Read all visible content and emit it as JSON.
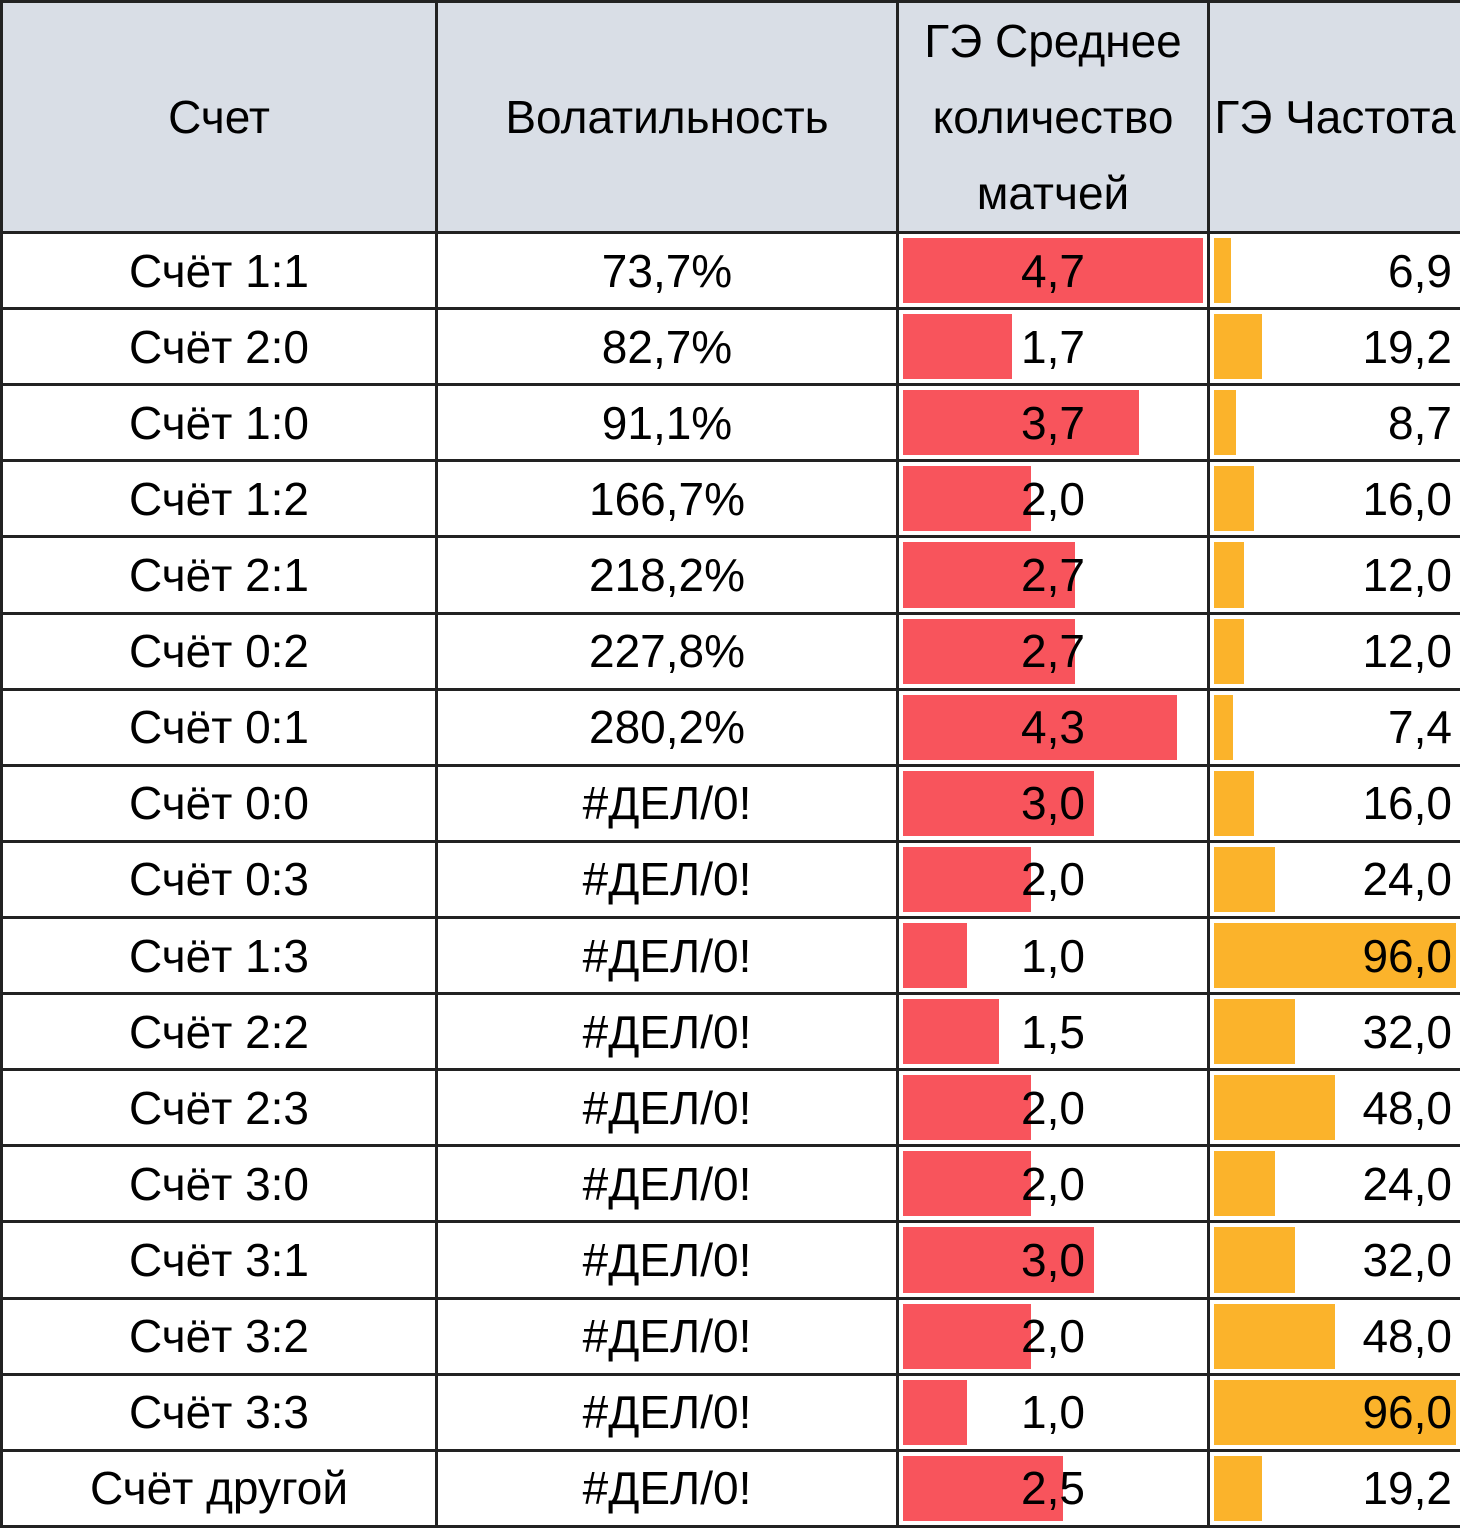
{
  "colors": {
    "header_bg": "#d9dee6",
    "avg_bar": "#f8545c",
    "freq_bar": "#fbb32b"
  },
  "headers": {
    "score": "Счет",
    "volatility": "Волатильность",
    "avg_matches": "ГЭ Среднее количество матчей",
    "frequency": "ГЭ Частота"
  },
  "rows": [
    {
      "score": "Счёт 1:1",
      "volatility": "73,7%",
      "avg": "4,7",
      "avg_value": 4.7,
      "freq": "6,9",
      "freq_value": 6.9
    },
    {
      "score": "Счёт 2:0",
      "volatility": "82,7%",
      "avg": "1,7",
      "avg_value": 1.7,
      "freq": "19,2",
      "freq_value": 19.2
    },
    {
      "score": "Счёт 1:0",
      "volatility": "91,1%",
      "avg": "3,7",
      "avg_value": 3.7,
      "freq": "8,7",
      "freq_value": 8.7
    },
    {
      "score": "Счёт 1:2",
      "volatility": "166,7%",
      "avg": "2,0",
      "avg_value": 2.0,
      "freq": "16,0",
      "freq_value": 16.0
    },
    {
      "score": "Счёт 2:1",
      "volatility": "218,2%",
      "avg": "2,7",
      "avg_value": 2.7,
      "freq": "12,0",
      "freq_value": 12.0
    },
    {
      "score": "Счёт 0:2",
      "volatility": "227,8%",
      "avg": "2,7",
      "avg_value": 2.7,
      "freq": "12,0",
      "freq_value": 12.0
    },
    {
      "score": "Счёт 0:1",
      "volatility": "280,2%",
      "avg": "4,3",
      "avg_value": 4.3,
      "freq": "7,4",
      "freq_value": 7.4
    },
    {
      "score": "Счёт 0:0",
      "volatility": "#ДЕЛ/0!",
      "avg": "3,0",
      "avg_value": 3.0,
      "freq": "16,0",
      "freq_value": 16.0
    },
    {
      "score": "Счёт 0:3",
      "volatility": "#ДЕЛ/0!",
      "avg": "2,0",
      "avg_value": 2.0,
      "freq": "24,0",
      "freq_value": 24.0
    },
    {
      "score": "Счёт 1:3",
      "volatility": "#ДЕЛ/0!",
      "avg": "1,0",
      "avg_value": 1.0,
      "freq": "96,0",
      "freq_value": 96.0
    },
    {
      "score": "Счёт 2:2",
      "volatility": "#ДЕЛ/0!",
      "avg": "1,5",
      "avg_value": 1.5,
      "freq": "32,0",
      "freq_value": 32.0
    },
    {
      "score": "Счёт 2:3",
      "volatility": "#ДЕЛ/0!",
      "avg": "2,0",
      "avg_value": 2.0,
      "freq": "48,0",
      "freq_value": 48.0
    },
    {
      "score": "Счёт 3:0",
      "volatility": "#ДЕЛ/0!",
      "avg": "2,0",
      "avg_value": 2.0,
      "freq": "24,0",
      "freq_value": 24.0
    },
    {
      "score": "Счёт 3:1",
      "volatility": "#ДЕЛ/0!",
      "avg": "3,0",
      "avg_value": 3.0,
      "freq": "32,0",
      "freq_value": 32.0
    },
    {
      "score": "Счёт 3:2",
      "volatility": "#ДЕЛ/0!",
      "avg": "2,0",
      "avg_value": 2.0,
      "freq": "48,0",
      "freq_value": 48.0
    },
    {
      "score": "Счёт 3:3",
      "volatility": "#ДЕЛ/0!",
      "avg": "1,0",
      "avg_value": 1.0,
      "freq": "96,0",
      "freq_value": 96.0
    },
    {
      "score": "Счёт другой",
      "volatility": "#ДЕЛ/0!",
      "avg": "2,5",
      "avg_value": 2.5,
      "freq": "19,2",
      "freq_value": 19.2
    }
  ]
}
